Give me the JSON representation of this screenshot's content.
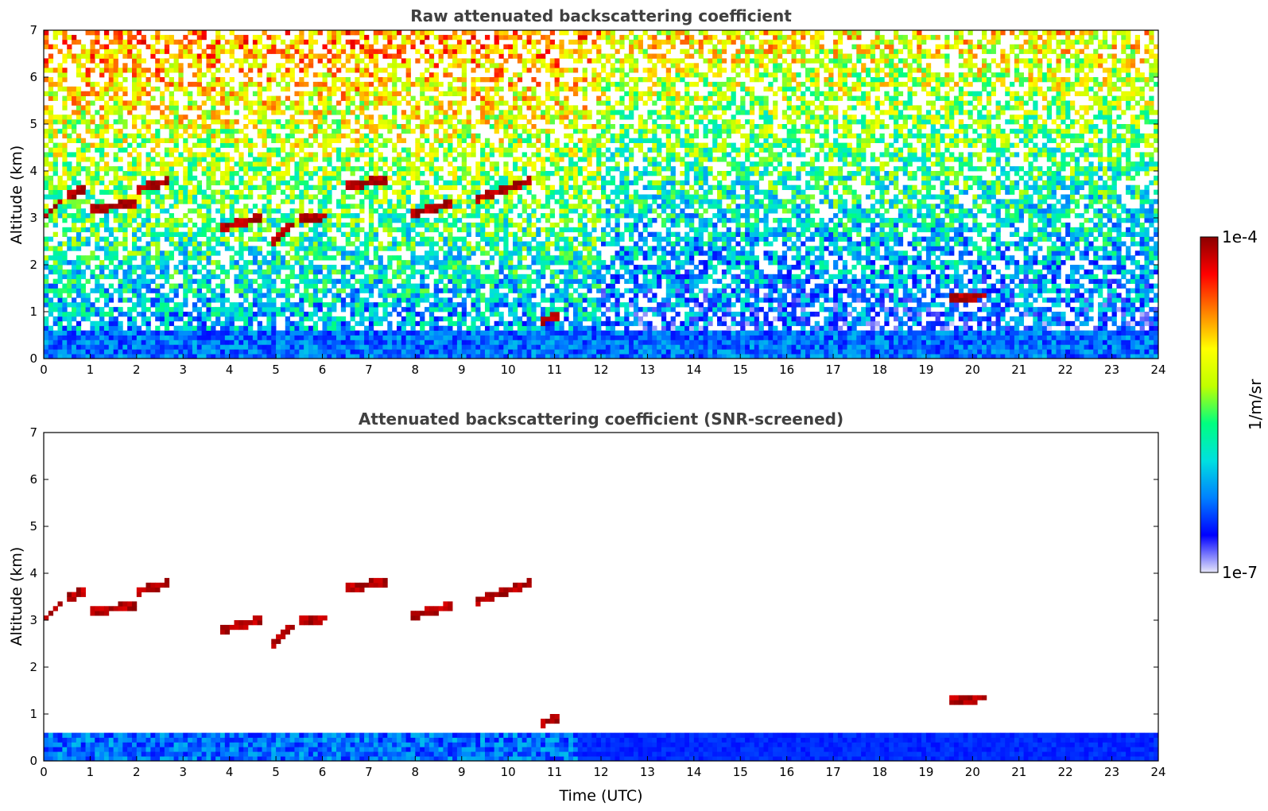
{
  "chart_data": [
    {
      "type": "heatmap",
      "title": "Raw attenuated backscattering coefficient",
      "xlabel": "",
      "ylabel": "Altitude (km)",
      "xlim": [
        0,
        24
      ],
      "ylim": [
        0,
        7
      ],
      "xticks": [
        "0",
        "1",
        "2",
        "3",
        "4",
        "5",
        "6",
        "7",
        "8",
        "9",
        "10",
        "11",
        "12",
        "13",
        "14",
        "15",
        "16",
        "17",
        "18",
        "19",
        "20",
        "21",
        "22",
        "23",
        "24"
      ],
      "yticks": [
        "0",
        "1",
        "2",
        "3",
        "4",
        "5",
        "6",
        "7"
      ],
      "screened": false,
      "features": {
        "boundary_layer_top_km": 0.6,
        "cloud_layers": [
          {
            "t": [
              0.0,
              0.4
            ],
            "alt": [
              3.0,
              3.4
            ]
          },
          {
            "t": [
              0.5,
              0.9
            ],
            "alt": [
              3.5,
              3.6
            ]
          },
          {
            "t": [
              1.0,
              2.0
            ],
            "alt": [
              3.2,
              3.3
            ]
          },
          {
            "t": [
              2.0,
              2.7
            ],
            "alt": [
              3.6,
              3.8
            ]
          },
          {
            "t": [
              3.8,
              4.7
            ],
            "alt": [
              2.8,
              3.0
            ]
          },
          {
            "t": [
              4.9,
              5.4
            ],
            "alt": [
              2.5,
              2.9
            ]
          },
          {
            "t": [
              5.5,
              6.1
            ],
            "alt": [
              3.0,
              3.05
            ]
          },
          {
            "t": [
              6.5,
              7.4
            ],
            "alt": [
              3.7,
              3.8
            ]
          },
          {
            "t": [
              7.9,
              8.8
            ],
            "alt": [
              3.1,
              3.3
            ]
          },
          {
            "t": [
              9.3,
              10.5
            ],
            "alt": [
              3.4,
              3.8
            ]
          },
          {
            "t": [
              10.7,
              11.1
            ],
            "alt": [
              0.8,
              0.95
            ]
          },
          {
            "t": [
              19.5,
              20.3
            ],
            "alt": [
              1.3,
              1.35
            ]
          }
        ]
      }
    },
    {
      "type": "heatmap",
      "title": "Attenuated backscattering coefficient (SNR-screened)",
      "xlabel": "Time (UTC)",
      "ylabel": "Altitude (km)",
      "xlim": [
        0,
        24
      ],
      "ylim": [
        0,
        7
      ],
      "xticks": [
        "0",
        "1",
        "2",
        "3",
        "4",
        "5",
        "6",
        "7",
        "8",
        "9",
        "10",
        "11",
        "12",
        "13",
        "14",
        "15",
        "16",
        "17",
        "18",
        "19",
        "20",
        "21",
        "22",
        "23",
        "24"
      ],
      "yticks": [
        "0",
        "1",
        "2",
        "3",
        "4",
        "5",
        "6",
        "7"
      ],
      "screened": true
    }
  ],
  "colorbar": {
    "label": "1/m/sr",
    "max_label": "1e-4",
    "min_label": "1e-7",
    "scale": "log",
    "colormap": [
      "#e6e6fa",
      "#0000ff",
      "#0080ff",
      "#00e0e0",
      "#00ff80",
      "#c0ff00",
      "#ffff00",
      "#ff8000",
      "#ff0000",
      "#8b0000"
    ]
  }
}
